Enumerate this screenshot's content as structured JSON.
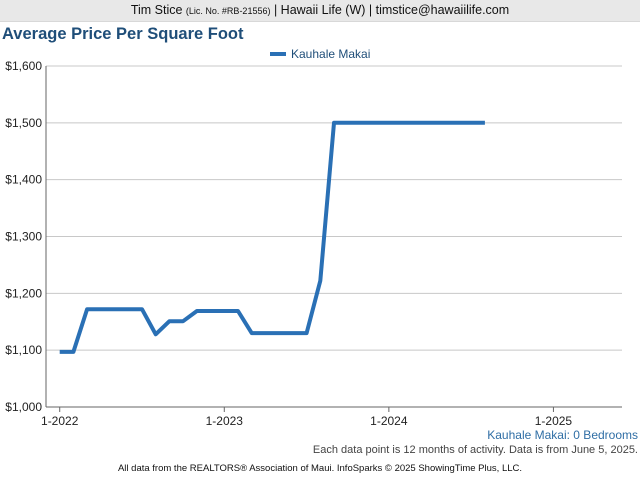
{
  "header": {
    "agent_name": "Tim Stice",
    "license": "(Lic. No. #RB-21556)",
    "rest": "| Hawaii Life (W) | timstice@hawaiilife.com"
  },
  "footer": {
    "text": "All data from the REALTORS® Association of Maui. InfoSparks © 2025 ShowingTime Plus, LLC."
  },
  "captions": {
    "series_label": "Kauhale Makai: 0 Bedrooms",
    "note": "Each data point is 12 months of activity. Data is from June 5, 2025."
  },
  "colors": {
    "series": "#2a70b5",
    "title": "#1f4e79",
    "grid": "#c8c8c8",
    "axis": "#666666"
  },
  "chart_data": {
    "type": "line",
    "title": "Average Price Per Square Foot",
    "xlabel": "",
    "ylabel": "",
    "x_ticks": [
      "1-2022",
      "1-2023",
      "1-2024",
      "1-2025"
    ],
    "x_range": [
      "2021-12",
      "2025-06"
    ],
    "y_ticks": [
      "$1,000",
      "$1,100",
      "$1,200",
      "$1,300",
      "$1,400",
      "$1,500",
      "$1,600"
    ],
    "ylim": [
      1000,
      1600
    ],
    "grid": "horizontal",
    "legend_position": "top-center",
    "series": [
      {
        "name": "Kauhale Makai",
        "x": [
          "2022-01",
          "2022-02",
          "2022-03",
          "2022-04",
          "2022-05",
          "2022-06",
          "2022-07",
          "2022-08",
          "2022-09",
          "2022-10",
          "2022-11",
          "2022-12",
          "2023-01",
          "2023-02",
          "2023-03",
          "2023-04",
          "2023-05",
          "2023-06",
          "2023-07",
          "2023-08",
          "2023-09",
          "2023-10",
          "2023-11",
          "2023-12",
          "2024-01",
          "2024-02",
          "2024-03",
          "2024-04",
          "2024-05",
          "2024-06",
          "2024-07",
          "2024-08"
        ],
        "values": [
          1097,
          1097,
          1172,
          1172,
          1172,
          1172,
          1172,
          1128,
          1151,
          1151,
          1169,
          1169,
          1169,
          1169,
          1130,
          1130,
          1130,
          1130,
          1130,
          1222,
          1500,
          1500,
          1500,
          1500,
          1500,
          1500,
          1500,
          1500,
          1500,
          1500,
          1500,
          1500
        ]
      }
    ]
  }
}
